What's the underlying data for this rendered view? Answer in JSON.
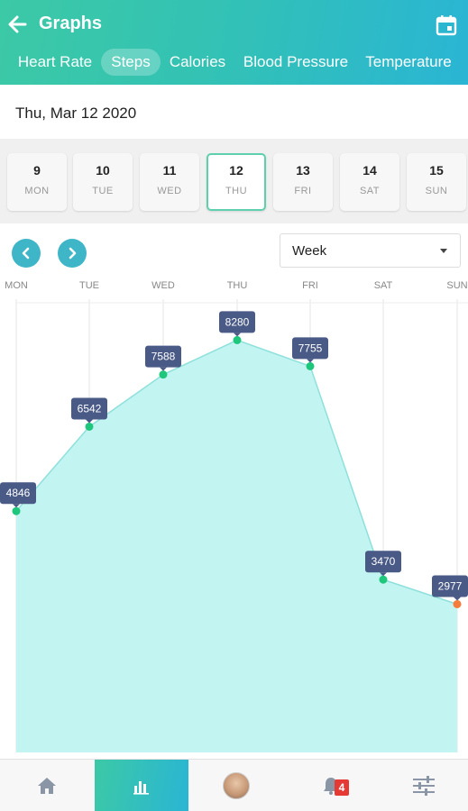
{
  "header": {
    "title": "Graphs",
    "tabs": [
      {
        "label": "Heart Rate"
      },
      {
        "label": "Steps",
        "active": true
      },
      {
        "label": "Calories"
      },
      {
        "label": "Blood Pressure"
      },
      {
        "label": "Temperature"
      }
    ]
  },
  "selected_date": "Thu, Mar 12 2020",
  "week": [
    {
      "num": "9",
      "name": "MON"
    },
    {
      "num": "10",
      "name": "TUE"
    },
    {
      "num": "11",
      "name": "WED"
    },
    {
      "num": "12",
      "name": "THU",
      "selected": true
    },
    {
      "num": "13",
      "name": "FRI"
    },
    {
      "num": "14",
      "name": "SAT"
    },
    {
      "num": "15",
      "name": "SUN"
    }
  ],
  "range_select": {
    "value": "Week"
  },
  "chart_data": {
    "type": "area",
    "categories": [
      "MON",
      "TUE",
      "WED",
      "THU",
      "FRI",
      "SAT",
      "SUN"
    ],
    "values": [
      4846,
      6542,
      7588,
      8280,
      7755,
      3470,
      2977
    ],
    "data_labels": [
      "4846",
      "6542",
      "7588",
      "8280",
      "7755",
      "3470",
      "2977"
    ],
    "ylim": [
      0,
      9500
    ],
    "grid": "vertical",
    "colors": {
      "fill": "#c2f4f1",
      "line": "#8fe0dc",
      "point": "#1ec77b",
      "last_point": "#f57c3a",
      "label_bg": "#4a5a86"
    }
  },
  "bottom_nav": {
    "items": [
      {
        "icon": "home-icon"
      },
      {
        "icon": "bar-chart-icon",
        "active": true
      },
      {
        "icon": "avatar"
      },
      {
        "icon": "bell-icon",
        "badge": "4"
      },
      {
        "icon": "sliders-icon"
      }
    ]
  },
  "colors": {
    "accent_start": "#3cc9a6",
    "accent_end": "#2ab5d4",
    "nav_button": "#3eb6c7"
  }
}
